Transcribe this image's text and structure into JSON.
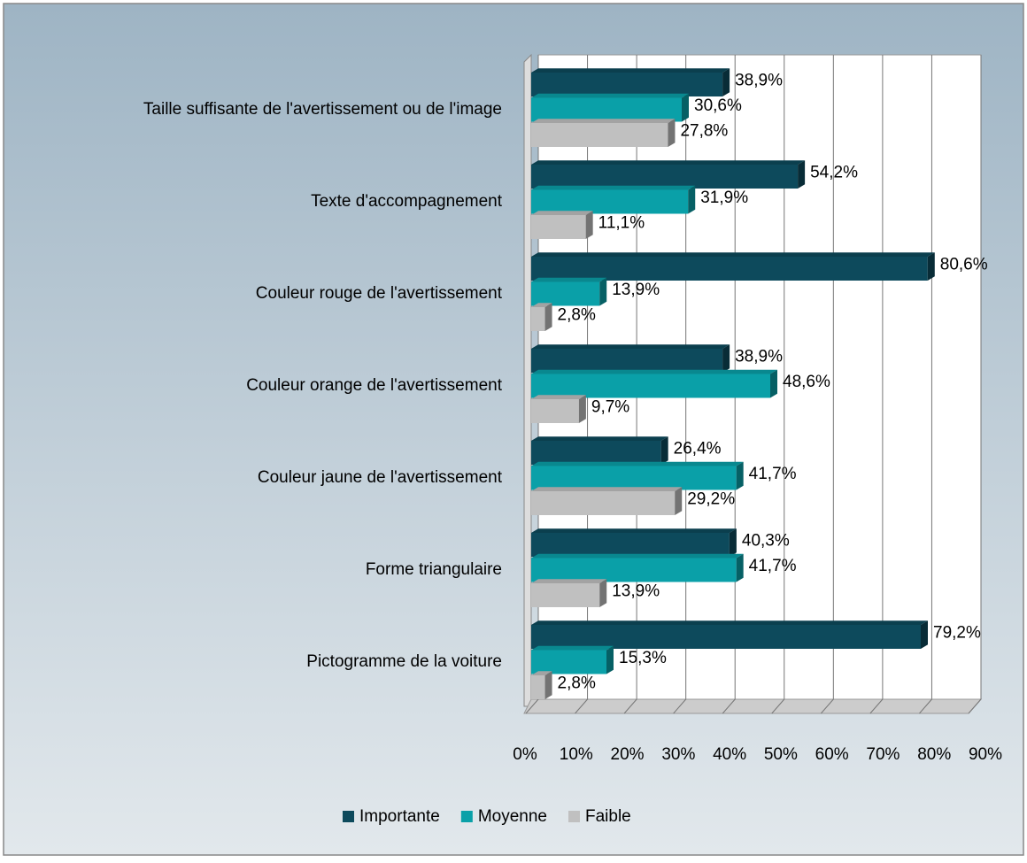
{
  "chart_data": {
    "type": "bar",
    "orientation": "horizontal",
    "three_d": true,
    "categories": [
      "Taille suffisante de l'avertissement ou de l'image",
      "Texte d'accompagnement",
      "Couleur rouge de l'avertissement",
      "Couleur orange de l'avertissement",
      "Couleur jaune de l'avertissement",
      "Forme triangulaire",
      "Pictogramme de la voiture"
    ],
    "series": [
      {
        "name": "Importante",
        "color": "#0d4a5c",
        "values": [
          38.9,
          54.2,
          80.6,
          38.9,
          26.4,
          40.3,
          79.2
        ],
        "value_labels": [
          "38,9%",
          "54,2%",
          "80,6%",
          "38,9%",
          "26,4%",
          "40,3%",
          "79,2%"
        ]
      },
      {
        "name": "Moyenne",
        "color": "#0aa0a8",
        "values": [
          30.6,
          31.9,
          13.9,
          48.6,
          41.7,
          41.7,
          15.3
        ],
        "value_labels": [
          "30,6%",
          "31,9%",
          "13,9%",
          "48,6%",
          "41,7%",
          "41,7%",
          "15,3%"
        ]
      },
      {
        "name": "Faible",
        "color": "#c0c0c0",
        "values": [
          27.8,
          11.1,
          2.8,
          9.7,
          29.2,
          13.9,
          2.8
        ],
        "value_labels": [
          "27,8%",
          "11,1%",
          "2,8%",
          "9,7%",
          "29,2%",
          "13,9%",
          "2,8%"
        ]
      }
    ],
    "xlim": [
      0,
      90
    ],
    "xticks": [
      {
        "value": 0,
        "label": "0%"
      },
      {
        "value": 10,
        "label": "10%"
      },
      {
        "value": 20,
        "label": "20%"
      },
      {
        "value": 30,
        "label": "30%"
      },
      {
        "value": 40,
        "label": "40%"
      },
      {
        "value": 50,
        "label": "50%"
      },
      {
        "value": 60,
        "label": "60%"
      },
      {
        "value": 70,
        "label": "70%"
      },
      {
        "value": 80,
        "label": "80%"
      },
      {
        "value": 90,
        "label": "90%"
      }
    ],
    "grid": true,
    "legend": "bottom"
  }
}
